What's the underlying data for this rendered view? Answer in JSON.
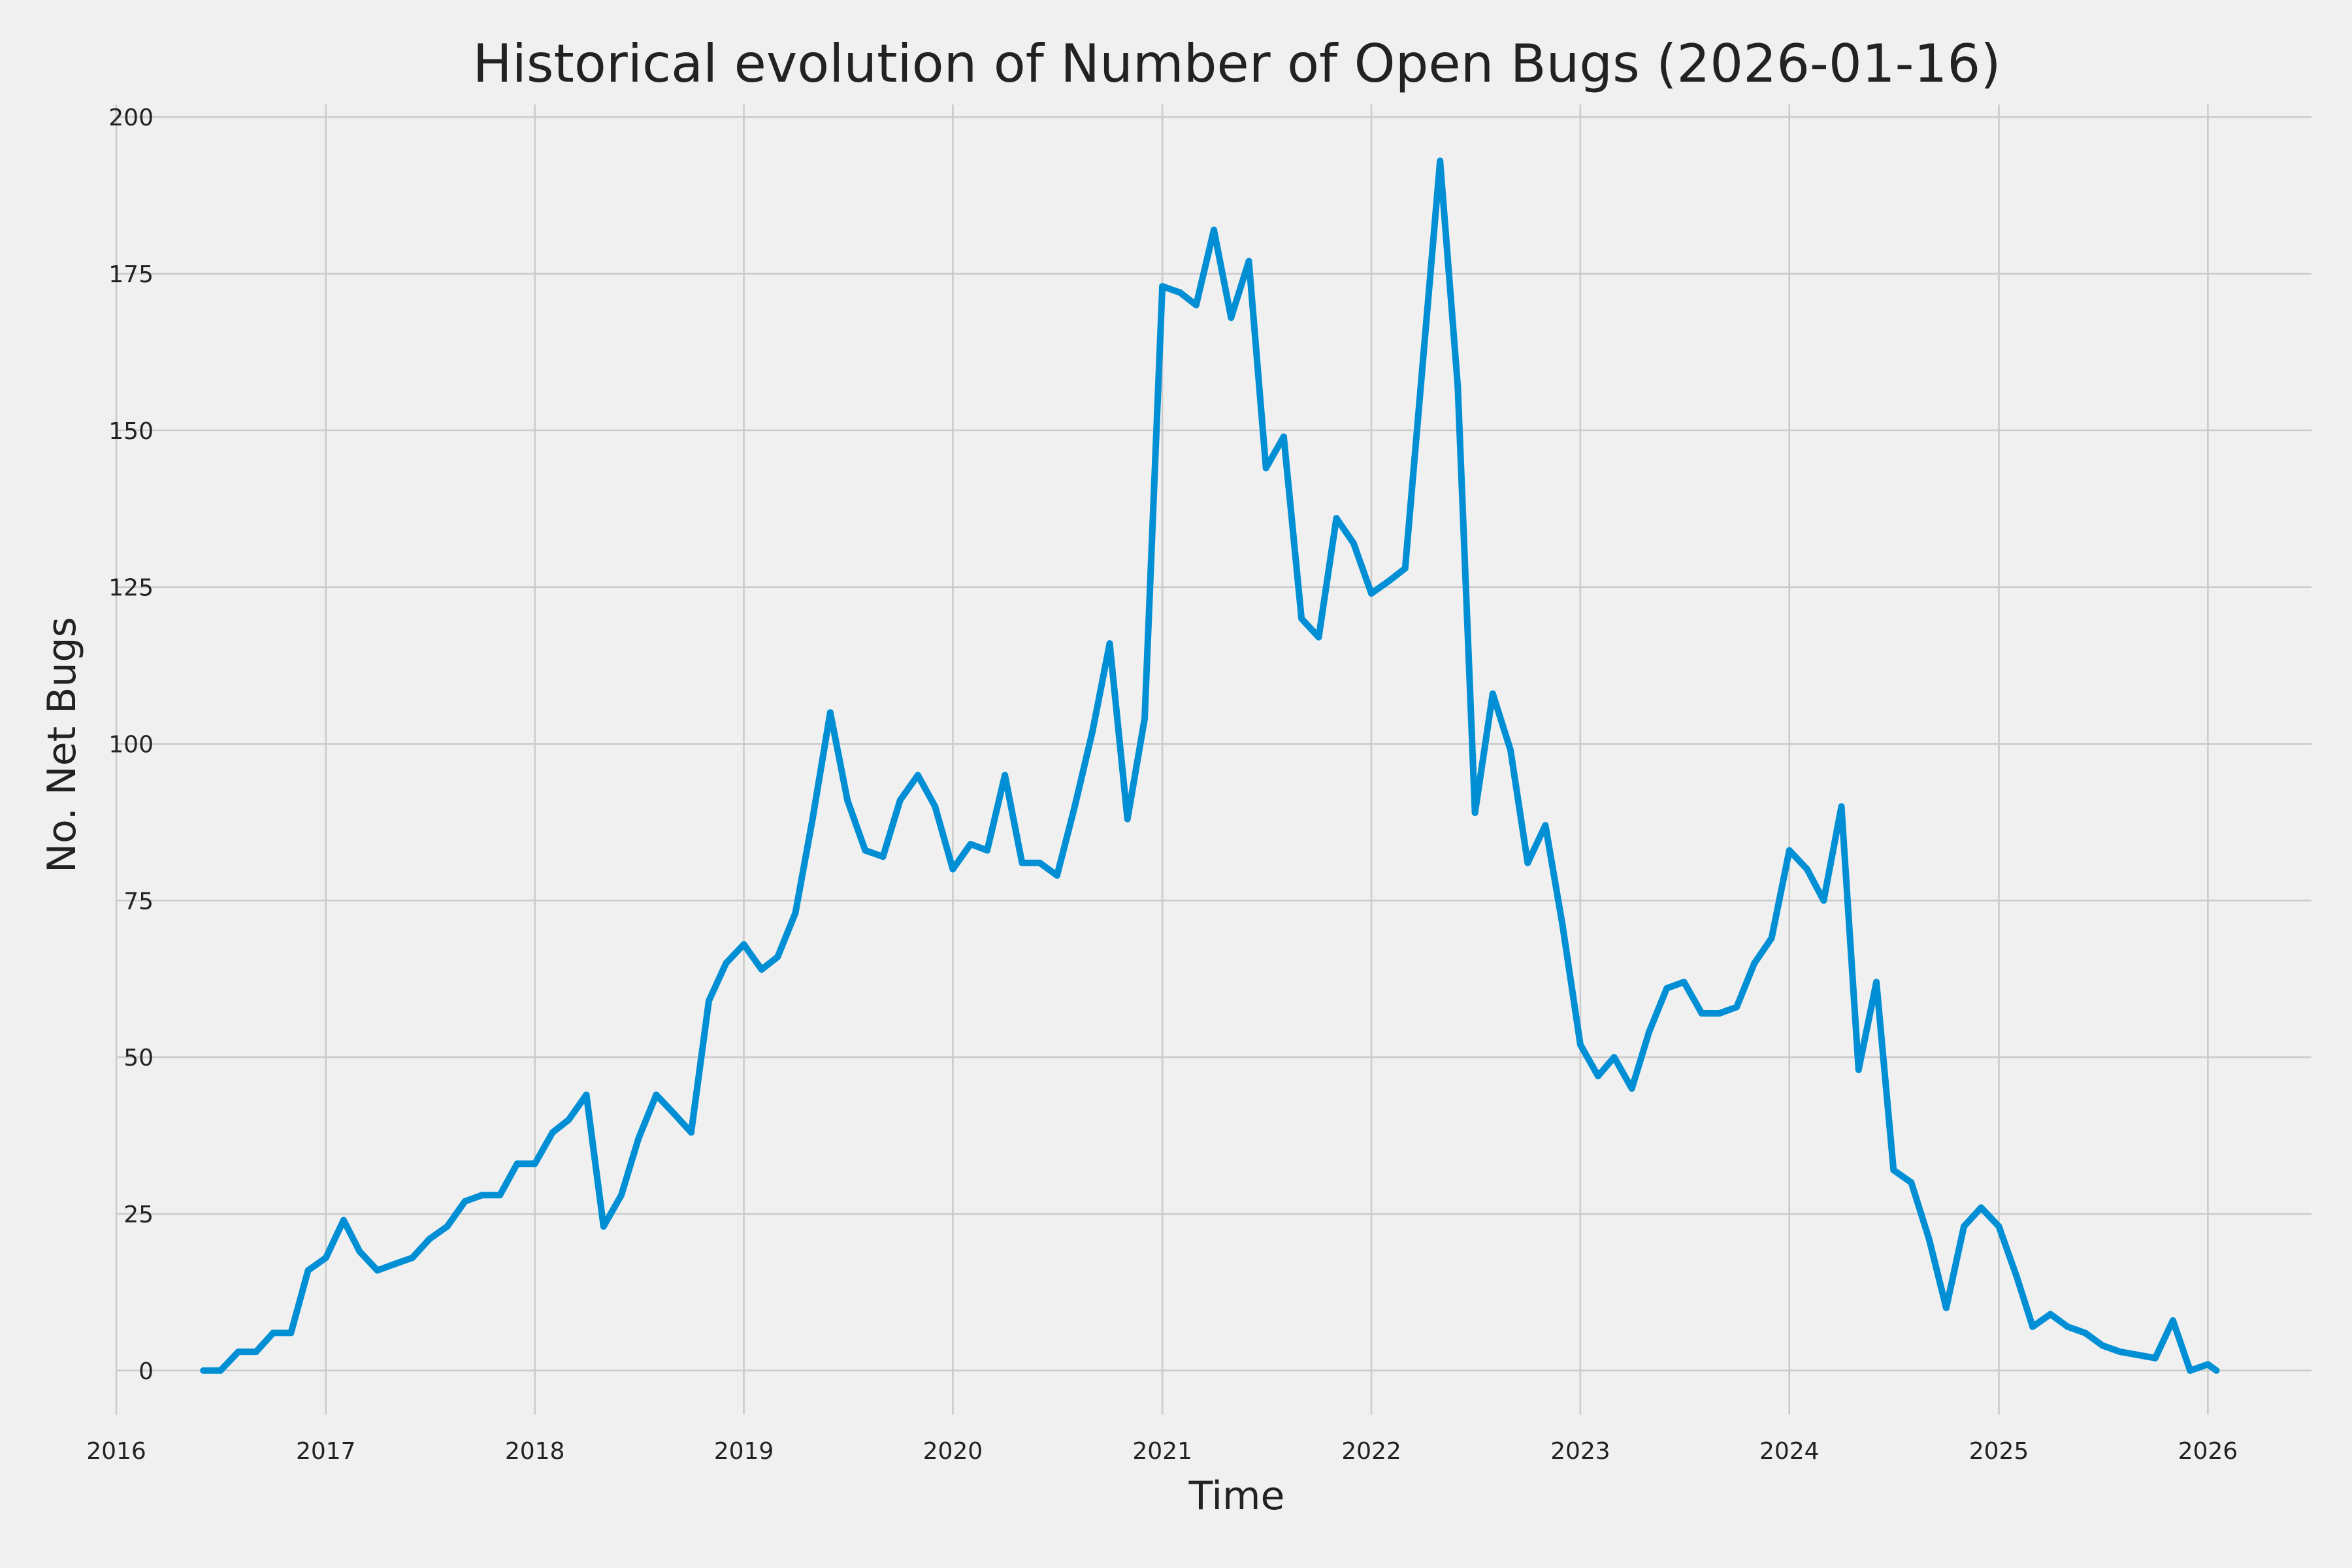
{
  "chart_data": {
    "type": "line",
    "title": "Historical evolution of Number of Open Bugs (2026-01-16)",
    "xlabel": "Time",
    "ylabel": "No. Net Bugs",
    "x_ticks": [
      "2016",
      "2017",
      "2018",
      "2019",
      "2020",
      "2021",
      "2022",
      "2023",
      "2024",
      "2025",
      "2026"
    ],
    "y_ticks": [
      0,
      25,
      50,
      75,
      100,
      125,
      150,
      175,
      200
    ],
    "xlim": [
      "2016-01-01",
      "2026-07-01"
    ],
    "ylim": [
      -7,
      202
    ],
    "grid": true,
    "legend": false,
    "line_color": "#008fd5",
    "series": [
      {
        "x": [
          "2016-06-01",
          "2016-07-01",
          "2016-08-01",
          "2016-09-01",
          "2016-10-01",
          "2016-11-01",
          "2016-12-01",
          "2017-01-01",
          "2017-02-01",
          "2017-03-01",
          "2017-04-01",
          "2017-05-01",
          "2017-06-01",
          "2017-07-01",
          "2017-08-01",
          "2017-09-01",
          "2017-10-01",
          "2017-11-01",
          "2017-12-01",
          "2018-01-01",
          "2018-02-01",
          "2018-03-01",
          "2018-04-01",
          "2018-05-01",
          "2018-06-01",
          "2018-07-01",
          "2018-08-01",
          "2018-09-01",
          "2018-10-01",
          "2018-11-01",
          "2018-12-01",
          "2019-01-01",
          "2019-02-01",
          "2019-03-01",
          "2019-04-01",
          "2019-05-01",
          "2019-06-01",
          "2019-07-01",
          "2019-08-01",
          "2019-09-01",
          "2019-10-01",
          "2019-11-01",
          "2019-12-01",
          "2020-01-01",
          "2020-02-01",
          "2020-03-01",
          "2020-04-01",
          "2020-05-01",
          "2020-06-01",
          "2020-07-01",
          "2020-08-01",
          "2020-09-01",
          "2020-10-01",
          "2020-11-01",
          "2020-12-01",
          "2021-01-01",
          "2021-02-01",
          "2021-03-01",
          "2021-04-01",
          "2021-05-01",
          "2021-06-01",
          "2021-07-01",
          "2021-08-01",
          "2021-09-01",
          "2021-10-01",
          "2021-11-01",
          "2021-12-01",
          "2022-01-01",
          "2022-02-01",
          "2022-03-01",
          "2022-04-01",
          "2022-05-01",
          "2022-06-01",
          "2022-07-01",
          "2022-08-01",
          "2022-09-01",
          "2022-10-01",
          "2022-11-01",
          "2022-12-01",
          "2023-01-01",
          "2023-02-01",
          "2023-03-01",
          "2023-04-01",
          "2023-05-01",
          "2023-06-01",
          "2023-07-01",
          "2023-08-01",
          "2023-09-01",
          "2023-10-01",
          "2023-11-01",
          "2023-12-01",
          "2024-01-01",
          "2024-02-01",
          "2024-03-01",
          "2024-04-01",
          "2024-05-01",
          "2024-06-01",
          "2024-07-01",
          "2024-08-01",
          "2024-09-01",
          "2024-10-01",
          "2024-11-01",
          "2024-12-01",
          "2025-01-01",
          "2025-02-01",
          "2025-03-01",
          "2025-04-01",
          "2025-05-01",
          "2025-06-01",
          "2025-07-01",
          "2025-08-01",
          "2025-09-01",
          "2025-10-01",
          "2025-11-01",
          "2025-12-01",
          "2026-01-01",
          "2026-01-16"
        ],
        "values": [
          0,
          0,
          3,
          3,
          6,
          6,
          16,
          18,
          24,
          19,
          16,
          17,
          18,
          21,
          23,
          27,
          28,
          28,
          33,
          33,
          38,
          40,
          44,
          23,
          28,
          37,
          44,
          41,
          38,
          59,
          65,
          68,
          64,
          66,
          73,
          88,
          105,
          91,
          83,
          82,
          91,
          95,
          90,
          80,
          84,
          83,
          95,
          81,
          81,
          79,
          90,
          102,
          116,
          88,
          104,
          173,
          172,
          170,
          182,
          168,
          177,
          144,
          149,
          120,
          117,
          136,
          132,
          124,
          126,
          128,
          161,
          193,
          157,
          89,
          108,
          99,
          81,
          87,
          71,
          52,
          47,
          50,
          45,
          54,
          61,
          62,
          57,
          57,
          58,
          65,
          69,
          83,
          80,
          75,
          90,
          48,
          62,
          32,
          30,
          21,
          10,
          23,
          26,
          23,
          15,
          7,
          9,
          7,
          6,
          4,
          3,
          2.5,
          2,
          8,
          0,
          1,
          0
        ]
      }
    ]
  }
}
